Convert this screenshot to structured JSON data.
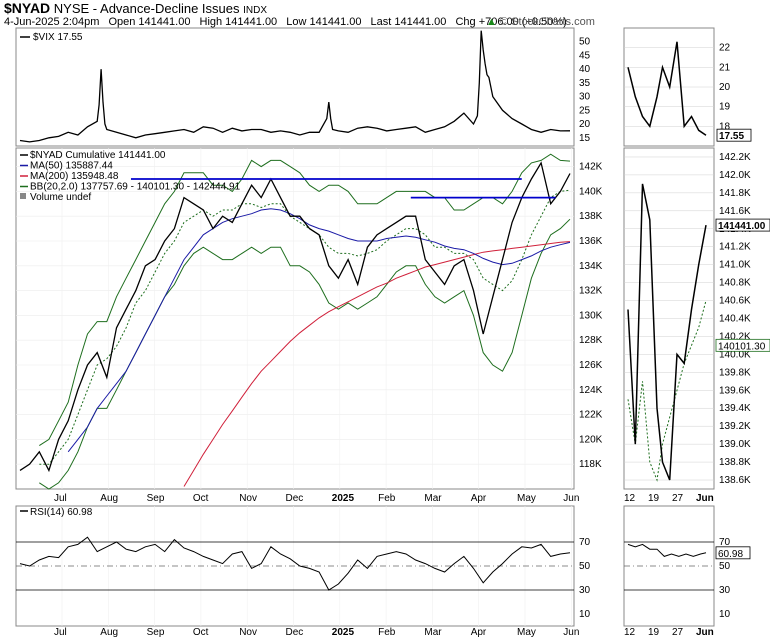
{
  "header": {
    "symbol": "$NYAD",
    "name": "NYSE - Advance-Decline Issues",
    "exchange": "INDX",
    "date": "4-Jun-2025 2:04pm",
    "open": "Open 141441.00",
    "high": "High 141441.00",
    "low": "Low 141441.00",
    "last": "Last 141441.00",
    "chg": "Chg +706.00 (+0.50%)",
    "brand": "© StockCharts.com",
    "brand_icon": "up-arrow-icon"
  },
  "colors": {
    "price": "#000000",
    "price_red": "#c0002a",
    "ma50": "#1a1aa6",
    "ma200": "#d0203a",
    "bb": "#1e6e1e",
    "hline": "#0000cc",
    "grid": "#d0d0d0"
  },
  "chart_data": [
    {
      "type": "line",
      "panel": "vix",
      "legend": [
        "$VIX 17.55"
      ],
      "last_label": "17.55",
      "ylim": [
        12,
        55
      ],
      "yticks": [
        "50",
        "45",
        "40",
        "35",
        "30",
        "25",
        "20",
        "15"
      ],
      "x": [
        0,
        10,
        20,
        30,
        40,
        50,
        60,
        70,
        80,
        82,
        84,
        86,
        88,
        90,
        100,
        110,
        120,
        130,
        140,
        150,
        160,
        170,
        180,
        190,
        200,
        210,
        220,
        230,
        240,
        250,
        260,
        270,
        280,
        290,
        300,
        310,
        318,
        320,
        322,
        324,
        330,
        340,
        350,
        360,
        370,
        380,
        390,
        400,
        410,
        420,
        430,
        440,
        450,
        460,
        470,
        474,
        476,
        478,
        480,
        482,
        484,
        486,
        490,
        500,
        510,
        520,
        530,
        540,
        550,
        560,
        570
      ],
      "values": [
        14,
        13.5,
        14,
        15,
        15.5,
        17,
        16,
        19,
        21,
        27,
        40,
        28,
        20,
        18,
        17,
        16,
        15,
        16,
        16.5,
        17,
        17.5,
        18,
        17,
        19,
        18.5,
        17,
        18.5,
        17.5,
        18,
        18,
        17,
        17.5,
        17,
        16,
        17,
        17,
        22,
        28,
        22,
        18,
        17.5,
        17,
        18.5,
        19,
        18.5,
        17.5,
        18,
        18.5,
        19,
        17,
        18,
        19,
        21,
        24,
        20,
        23,
        35,
        54,
        47,
        42,
        38,
        37,
        30,
        25,
        22,
        20,
        18,
        17,
        18,
        17.5,
        17.55
      ],
      "inset_x": [
        0,
        8,
        16,
        24,
        32,
        38,
        46,
        54,
        62,
        70,
        78,
        86
      ],
      "inset_values": [
        21,
        19.5,
        18.5,
        18,
        19.5,
        21,
        20,
        22.3,
        18,
        18.5,
        17.8,
        17.55
      ],
      "inset_yticks": [
        "22",
        "21",
        "20",
        "19",
        "18"
      ]
    },
    {
      "type": "line",
      "panel": "main",
      "legend": [
        "$NYAD Cumulative 141441.00",
        "MA(50) 135887.44",
        "MA(200) 135948.48",
        "BB(20,2.0) 137757.69 - 140101.30 - 142444.91",
        "Volume undef"
      ],
      "legend_icons": [
        "line-icon",
        "line-icon",
        "line-icon",
        "line-icon",
        "bar-icon"
      ],
      "last_label": "141441.00",
      "ylim": [
        116000,
        143500
      ],
      "yticks": [
        "142K",
        "140K",
        "138K",
        "136K",
        "134K",
        "132K",
        "130K",
        "128K",
        "126K",
        "124K",
        "122K",
        "120K",
        "118K"
      ],
      "x_labels": [
        "Jul",
        "Aug",
        "Sep",
        "Oct",
        "Nov",
        "Dec",
        "2025",
        "Feb",
        "Mar",
        "Apr",
        "May",
        "Jun"
      ],
      "x": [
        0,
        10,
        20,
        30,
        40,
        50,
        60,
        70,
        80,
        90,
        100,
        110,
        120,
        130,
        140,
        150,
        160,
        170,
        180,
        190,
        200,
        210,
        220,
        230,
        240,
        250,
        260,
        270,
        280,
        290,
        300,
        310,
        320,
        330,
        340,
        350,
        360,
        370,
        380,
        390,
        400,
        410,
        420,
        430,
        440,
        450,
        460,
        470,
        480,
        490,
        500,
        510,
        520,
        530,
        540,
        550,
        560,
        570
      ],
      "values": [
        117500,
        118000,
        119000,
        117500,
        120000,
        121500,
        124000,
        126000,
        127000,
        125000,
        129000,
        130500,
        132000,
        134000,
        134500,
        136000,
        137000,
        139500,
        139000,
        138500,
        137000,
        138000,
        137500,
        139000,
        140500,
        139500,
        141000,
        139500,
        138000,
        138000,
        137000,
        136500,
        134000,
        133000,
        134500,
        132500,
        135500,
        136500,
        137000,
        137500,
        138000,
        138000,
        134500,
        133500,
        132500,
        134000,
        134500,
        132000,
        128500,
        131500,
        134500,
        137500,
        139500,
        141000,
        142300,
        139000,
        140000,
        141441
      ],
      "ma50": [
        null,
        null,
        null,
        null,
        null,
        119000,
        120000,
        121000,
        122500,
        123500,
        124500,
        125500,
        127000,
        128500,
        130000,
        131500,
        133000,
        134500,
        135500,
        136500,
        137000,
        137500,
        137800,
        138000,
        138200,
        138500,
        138600,
        138500,
        138200,
        137800,
        137300,
        137000,
        136800,
        136500,
        136200,
        136000,
        136000,
        136000,
        136200,
        136300,
        136400,
        136300,
        136100,
        135900,
        135600,
        135400,
        135300,
        135000,
        134600,
        134300,
        134100,
        134200,
        134500,
        134800,
        135200,
        135500,
        135700,
        135887
      ],
      "ma200": [
        null,
        null,
        null,
        null,
        null,
        null,
        null,
        null,
        null,
        null,
        null,
        null,
        null,
        null,
        null,
        null,
        null,
        116200,
        117500,
        118800,
        120000,
        121200,
        122300,
        123400,
        124500,
        125500,
        126300,
        127100,
        127900,
        128600,
        129200,
        129800,
        130300,
        130700,
        131100,
        131500,
        131900,
        132300,
        132600,
        133000,
        133300,
        133600,
        133900,
        134100,
        134300,
        134500,
        134700,
        134900,
        135100,
        135200,
        135300,
        135400,
        135500,
        135600,
        135700,
        135800,
        135900,
        135948
      ],
      "bb_upper": [
        null,
        null,
        119500,
        120000,
        121500,
        123000,
        126000,
        128500,
        129500,
        129500,
        131500,
        133000,
        134500,
        136000,
        137500,
        139000,
        140000,
        141500,
        141500,
        141500,
        140500,
        140500,
        140000,
        141000,
        142500,
        142000,
        142500,
        142500,
        142000,
        141500,
        140500,
        140000,
        140500,
        140500,
        140000,
        139000,
        139000,
        139000,
        139500,
        140000,
        140000,
        140000,
        140000,
        139500,
        139500,
        138500,
        138500,
        139000,
        139500,
        139500,
        139000,
        140000,
        141500,
        142300,
        142500,
        143000,
        142500,
        142444
      ],
      "bb_lower": [
        null,
        null,
        116500,
        116000,
        116500,
        117500,
        119000,
        121000,
        122500,
        122500,
        124000,
        125500,
        127000,
        128500,
        130000,
        131500,
        132500,
        134000,
        135000,
        135500,
        135000,
        134500,
        134500,
        135000,
        135500,
        135000,
        135500,
        135500,
        134000,
        134000,
        133500,
        132500,
        131000,
        130500,
        131000,
        130500,
        131000,
        131500,
        132500,
        133500,
        134000,
        134000,
        132500,
        131500,
        131000,
        131500,
        132000,
        130000,
        127000,
        126000,
        125500,
        127000,
        130000,
        133000,
        135000,
        136500,
        137000,
        137757
      ],
      "bb_mid": [
        null,
        null,
        118000,
        118000,
        119000,
        120000,
        122000,
        124000,
        126000,
        126500,
        127500,
        129000,
        131000,
        132000,
        133500,
        135000,
        136000,
        137500,
        138000,
        138500,
        138000,
        138500,
        138500,
        139000,
        139000,
        138700,
        139000,
        139000,
        138000,
        137500,
        137000,
        136500,
        135500,
        135000,
        135000,
        134800,
        135000,
        135300,
        136000,
        136500,
        137000,
        137000,
        136500,
        135500,
        135500,
        135000,
        135000,
        134500,
        133000,
        132500,
        132000,
        132800,
        134500,
        136500,
        138000,
        139500,
        140000,
        140101
      ],
      "hlines": [
        [
          115,
          520,
          141000
        ],
        [
          405,
          555,
          139500
        ]
      ],
      "inset_x": [
        0,
        8,
        16,
        24,
        32,
        38,
        46,
        54,
        62,
        70,
        78,
        86
      ],
      "inset_values": [
        140500,
        139000,
        141900,
        141500,
        139400,
        138800,
        138600,
        140000,
        139900,
        140500,
        141000,
        141441
      ],
      "inset_yticks": [
        "142.2K",
        "142.0K",
        "141.8K",
        "141.6K",
        "141.4K",
        "141.2K",
        "141.0K",
        "140.8K",
        "140.6K",
        "140.4K",
        "140.2K",
        "140.0K",
        "139.8K",
        "139.6K",
        "139.4K",
        "139.2K",
        "139.0K",
        "138.8K",
        "138.6K"
      ],
      "inset_bb_label": "140101.30",
      "inset_x_labels": [
        "12",
        "19",
        "27",
        "Jun"
      ]
    },
    {
      "type": "line",
      "panel": "rsi",
      "legend": [
        "RSI(14) 60.98"
      ],
      "last_label": "60.98",
      "ylim": [
        0,
        100
      ],
      "yticks": [
        "70",
        "50",
        "30",
        "10"
      ],
      "x": [
        0,
        10,
        20,
        30,
        40,
        50,
        60,
        70,
        80,
        90,
        100,
        110,
        120,
        130,
        140,
        150,
        160,
        170,
        180,
        190,
        200,
        210,
        220,
        230,
        240,
        250,
        260,
        270,
        280,
        290,
        300,
        310,
        320,
        330,
        340,
        350,
        360,
        370,
        380,
        390,
        400,
        410,
        420,
        430,
        440,
        450,
        460,
        470,
        480,
        490,
        500,
        510,
        520,
        530,
        540,
        550,
        560,
        570
      ],
      "values": [
        52,
        50,
        55,
        58,
        57,
        66,
        68,
        74,
        62,
        66,
        70,
        64,
        62,
        66,
        68,
        62,
        72,
        65,
        62,
        58,
        55,
        52,
        60,
        62,
        48,
        52,
        66,
        60,
        56,
        50,
        48,
        45,
        30,
        35,
        44,
        55,
        48,
        58,
        60,
        62,
        60,
        55,
        52,
        48,
        45,
        52,
        58,
        48,
        36,
        45,
        52,
        60,
        66,
        65,
        68,
        58,
        60,
        60.98
      ],
      "inset_x": [
        0,
        8,
        16,
        24,
        32,
        40,
        48,
        56,
        64,
        72,
        80,
        86
      ],
      "inset_values": [
        68,
        66,
        68,
        64,
        64,
        58,
        60,
        58,
        60,
        58,
        60,
        60.98
      ],
      "inset_yticks": [
        "70",
        "50",
        "30",
        "10"
      ],
      "inset_x_labels": [
        "12",
        "19",
        "27",
        "Jun"
      ]
    }
  ]
}
